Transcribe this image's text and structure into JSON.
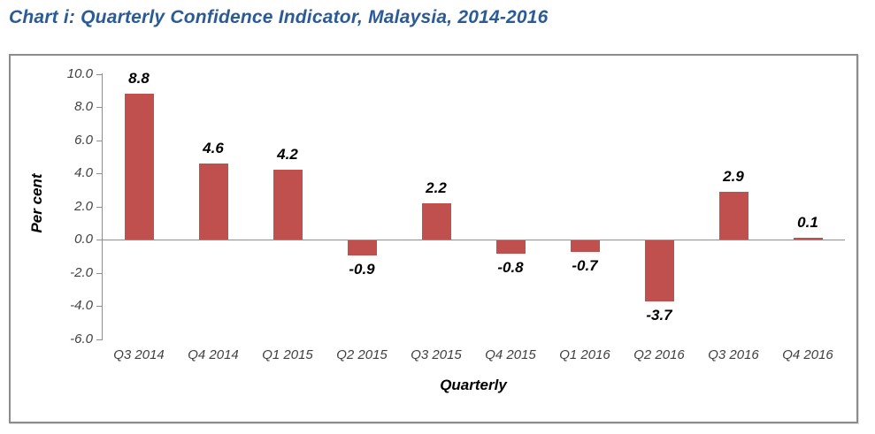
{
  "chart_data": {
    "type": "bar",
    "title": "Chart i: Quarterly Confidence Indicator, Malaysia, 2014-2016",
    "xlabel": "Quarterly",
    "ylabel": "Per cent",
    "categories": [
      "Q3 2014",
      "Q4 2014",
      "Q1 2015",
      "Q2 2015",
      "Q3 2015",
      "Q4 2015",
      "Q1 2016",
      "Q2 2016",
      "Q3 2016",
      "Q4 2016"
    ],
    "values": [
      8.8,
      4.6,
      4.2,
      -0.9,
      2.2,
      -0.8,
      -0.7,
      -3.7,
      2.9,
      0.1
    ],
    "labels": [
      "8.8",
      "4.6",
      "4.2",
      "-0.9",
      "2.2",
      "-0.8",
      "-0.7",
      "-3.7",
      "2.9",
      "0.1"
    ],
    "yticks": [
      "10.0",
      "8.0",
      "6.0",
      "4.0",
      "2.0",
      "0.0",
      "-2.0",
      "-4.0",
      "-6.0"
    ],
    "ylim": [
      -6.0,
      10.0
    ],
    "ytick_step": 2.0,
    "grid": false,
    "legend": "none",
    "colors": {
      "bar": "#C0504D",
      "title": "#2B5B97",
      "axis": "#8E8E8E",
      "frame_border": "#8C8C8C",
      "tick_text": "#3F3F3F",
      "data_label_text": "#000000"
    }
  }
}
